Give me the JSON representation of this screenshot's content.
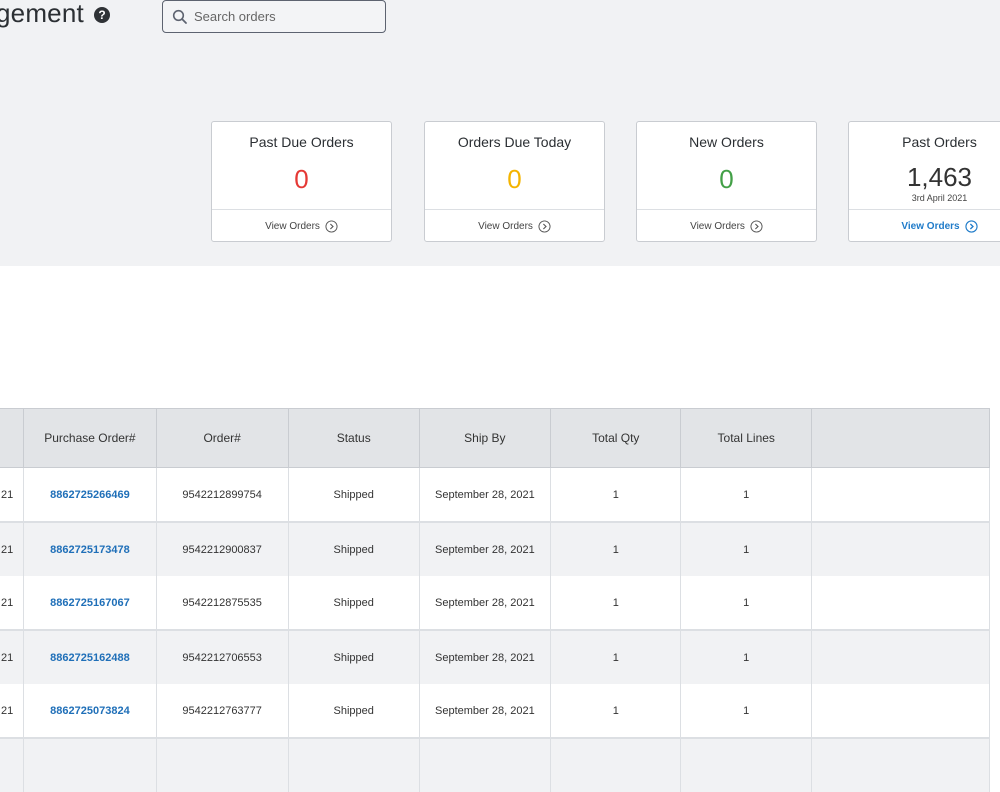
{
  "header": {
    "title_fragment": "gement",
    "help_icon": "question-circle-icon",
    "search": {
      "placeholder": "Search orders",
      "value": ""
    }
  },
  "summary_cards": [
    {
      "title": "Past Due Orders",
      "value": "0",
      "value_color": "#e53935",
      "subtext": "",
      "link_label": "View Orders",
      "link_active": false
    },
    {
      "title": "Orders Due Today",
      "value": "0",
      "value_color": "#f4b400",
      "subtext": "",
      "link_label": "View Orders",
      "link_active": false
    },
    {
      "title": "New Orders",
      "value": "0",
      "value_color": "#43a047",
      "subtext": "",
      "link_label": "View Orders",
      "link_active": false
    },
    {
      "title": "Past Orders",
      "value": "1,463",
      "value_color": "#2b2f33",
      "subtext": "3rd April 2021",
      "link_label": "View Orders",
      "link_active": true
    }
  ],
  "table": {
    "columns": [
      "",
      "Purchase Order#",
      "Order#",
      "Status",
      "Ship By",
      "Total Qty",
      "Total Lines",
      ""
    ],
    "rows": [
      {
        "date_fragment": "21",
        "purchase_order": "8862725266469",
        "order": "9542212899754",
        "status": "Shipped",
        "ship_by": "September 28, 2021",
        "total_qty": "1",
        "total_lines": "1"
      },
      {
        "date_fragment": "21",
        "purchase_order": "8862725173478",
        "order": "9542212900837",
        "status": "Shipped",
        "ship_by": "September 28, 2021",
        "total_qty": "1",
        "total_lines": "1"
      },
      {
        "date_fragment": "21",
        "purchase_order": "8862725167067",
        "order": "9542212875535",
        "status": "Shipped",
        "ship_by": "September 28, 2021",
        "total_qty": "1",
        "total_lines": "1"
      },
      {
        "date_fragment": "21",
        "purchase_order": "8862725162488",
        "order": "9542212706553",
        "status": "Shipped",
        "ship_by": "September 28, 2021",
        "total_qty": "1",
        "total_lines": "1"
      },
      {
        "date_fragment": "21",
        "purchase_order": "8862725073824",
        "order": "9542212763777",
        "status": "Shipped",
        "ship_by": "September 28, 2021",
        "total_qty": "1",
        "total_lines": "1"
      }
    ]
  },
  "colors": {
    "link_blue": "#1f6fb8",
    "past_due_red": "#e53935",
    "due_today_amber": "#f4b400",
    "new_green": "#43a047"
  }
}
